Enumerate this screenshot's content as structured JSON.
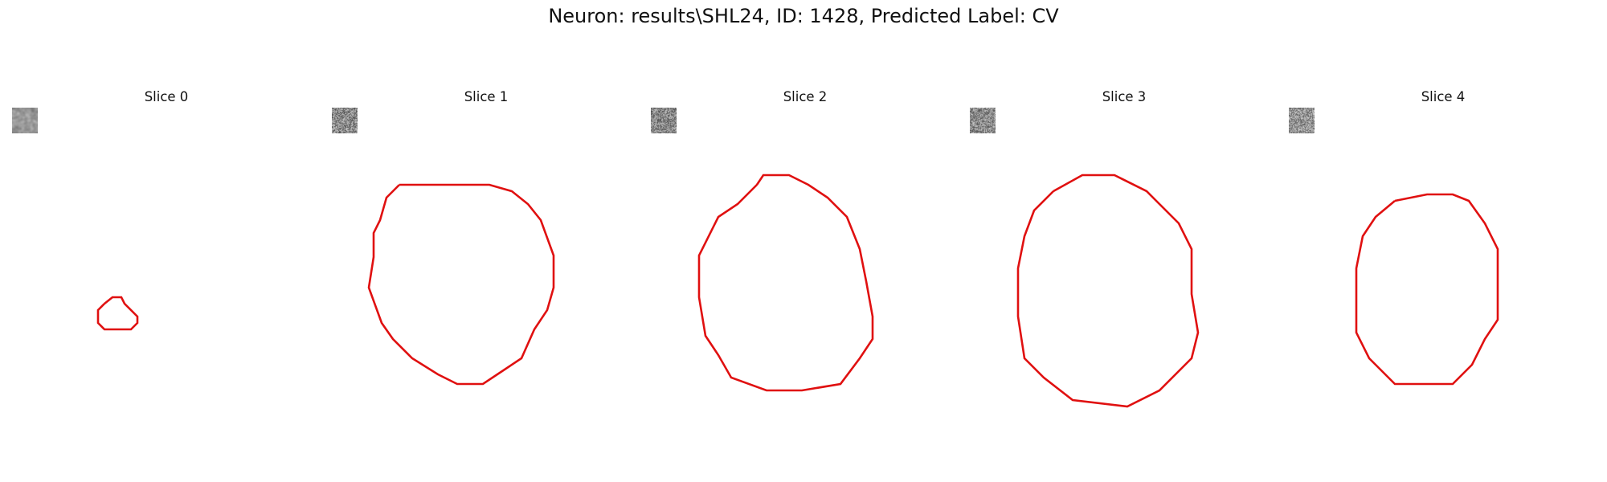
{
  "figure": {
    "title": "Neuron: results\\SHL24, ID: 1428, Predicted Label: CV"
  },
  "colors": {
    "contour": "#e01010",
    "background": "#ffffff"
  },
  "panels": [
    {
      "title": "Slice 0"
    },
    {
      "title": "Slice 1"
    },
    {
      "title": "Slice 2"
    },
    {
      "title": "Slice 3"
    },
    {
      "title": "Slice 4"
    }
  ]
}
